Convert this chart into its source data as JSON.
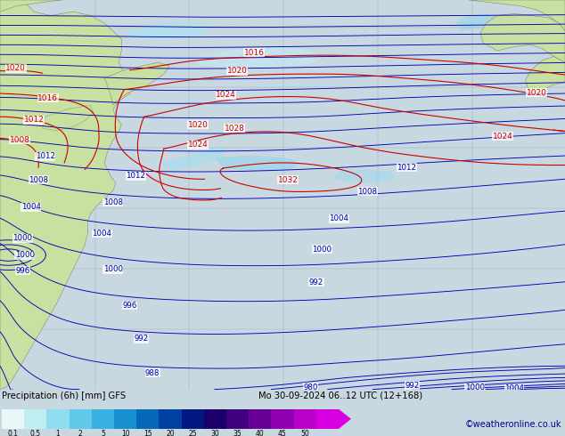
{
  "title_line1": "Precipitation (6h) [mm] GFS",
  "title_line2": "Mo 30-09-2024 06..12 UTC (12+168)",
  "credit": "©weatheronline.co.uk",
  "colorbar_labels": [
    "0.1",
    "0.5",
    "1",
    "2",
    "5",
    "10",
    "15",
    "20",
    "25",
    "30",
    "35",
    "40",
    "45",
    "50"
  ],
  "colorbar_colors": [
    "#e8f8f8",
    "#c0eef0",
    "#90ddf0",
    "#60c8e8",
    "#38b0e0",
    "#1890d0",
    "#0868b8",
    "#0040a0",
    "#001880",
    "#1a0068",
    "#400080",
    "#680098",
    "#9000b0",
    "#b800c8",
    "#d800e0"
  ],
  "ocean_bg": "#e8f4f8",
  "land_color": "#c8e0a0",
  "land_edge": "#888878",
  "fig_bg": "#c8d8e0",
  "bottom_bg": "#c0ccd4",
  "grid_color": "#9090a0",
  "blue_contour": "#0000b0",
  "red_contour": "#cc0000",
  "precip_light": "#b8e8f8",
  "precip_med": "#80cce8",
  "precip_dark": "#3080c0",
  "precip_vdark": "#0030a0"
}
